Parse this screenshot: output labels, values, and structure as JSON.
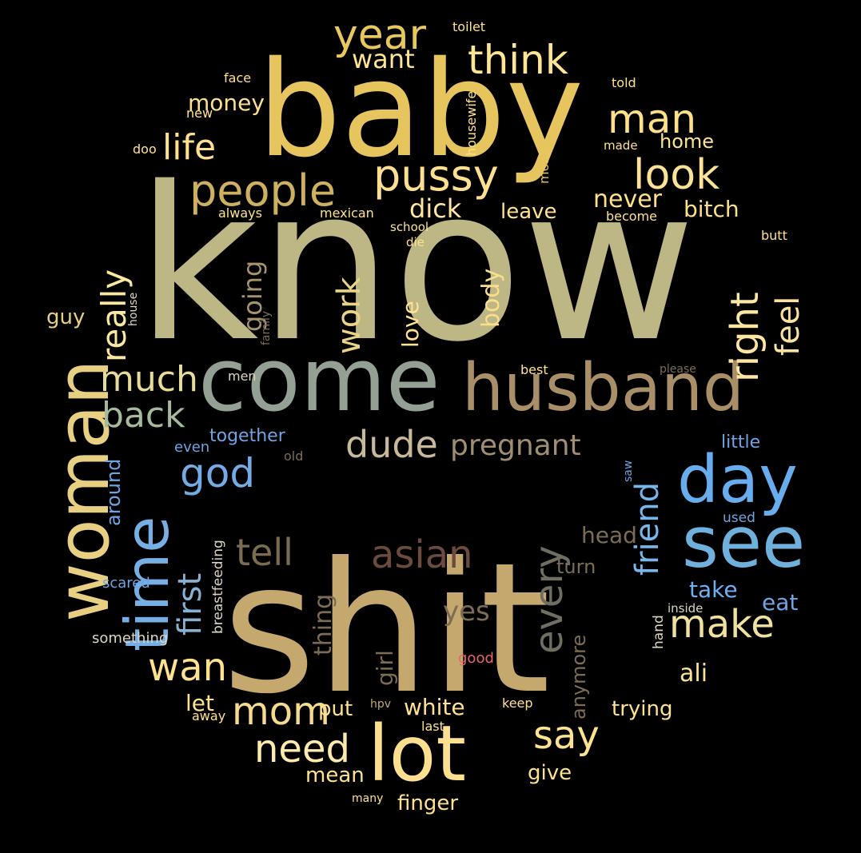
{
  "background": "#000000",
  "words": [
    {
      "text": "know",
      "color": "#BDB685"
    },
    {
      "text": "shit",
      "color": "#C5A86E"
    },
    {
      "text": "baby",
      "color": "#E7C55E"
    },
    {
      "text": "come",
      "color": "#93A093"
    },
    {
      "text": "husband",
      "color": "#A98F67"
    },
    {
      "text": "woman",
      "color": "#E8D083"
    },
    {
      "text": "see",
      "color": "#6FB0DC"
    },
    {
      "text": "day",
      "color": "#68ADEE"
    },
    {
      "text": "lot",
      "color": "#FDE08F"
    },
    {
      "text": "time",
      "color": "#75AFE4"
    },
    {
      "text": "people",
      "color": "#CDB15F"
    },
    {
      "text": "pussy",
      "color": "#FCE090"
    },
    {
      "text": "year",
      "color": "#E8C85C"
    },
    {
      "text": "think",
      "color": "#FDE594"
    },
    {
      "text": "look",
      "color": "#FBE296"
    },
    {
      "text": "man",
      "color": "#FEE08A"
    },
    {
      "text": "right",
      "color": "#FCE6A2"
    },
    {
      "text": "feel",
      "color": "#F8E29E"
    },
    {
      "text": "much",
      "color": "#E7DB99"
    },
    {
      "text": "back",
      "color": "#A5BA9D"
    },
    {
      "text": "life",
      "color": "#FFE08D"
    },
    {
      "text": "dude",
      "color": "#C8B99D"
    },
    {
      "text": "pregnant",
      "color": "#A08E74"
    },
    {
      "text": "god",
      "color": "#73ABE5"
    },
    {
      "text": "tell",
      "color": "#7B6B50"
    },
    {
      "text": "asian",
      "color": "#6C4B3F"
    },
    {
      "text": "every",
      "color": "#706E60"
    },
    {
      "text": "first",
      "color": "#86B1D2"
    },
    {
      "text": "friend",
      "color": "#77B6EA"
    },
    {
      "text": "make",
      "color": "#F0E19D"
    },
    {
      "text": "wan",
      "color": "#FEE28E"
    },
    {
      "text": "say",
      "color": "#FDE38F"
    },
    {
      "text": "need",
      "color": "#FEEAAC"
    },
    {
      "text": "mom",
      "color": "#F5DC8C"
    },
    {
      "text": "really",
      "color": "#FBE79D"
    },
    {
      "text": "work",
      "color": "#E8D387"
    },
    {
      "text": "want",
      "color": "#FEE591"
    },
    {
      "text": "money",
      "color": "#FCE08E"
    },
    {
      "text": "dick",
      "color": "#FFE6A5"
    },
    {
      "text": "never",
      "color": "#FEE088"
    },
    {
      "text": "bitch",
      "color": "#FEE088"
    },
    {
      "text": "leave",
      "color": "#FFE390"
    },
    {
      "text": "home",
      "color": "#FFE390"
    },
    {
      "text": "love",
      "color": "#FFE390"
    },
    {
      "text": "body",
      "color": "#FCDD8C"
    },
    {
      "text": "going",
      "color": "#A6946D"
    },
    {
      "text": "together",
      "color": "#6FA4E4"
    },
    {
      "text": "little",
      "color": "#6FA4E4"
    },
    {
      "text": "take",
      "color": "#6DB1F2"
    },
    {
      "text": "eat",
      "color": "#6FA4E4"
    },
    {
      "text": "ali",
      "color": "#F9E395"
    },
    {
      "text": "white",
      "color": "#FEE28E"
    },
    {
      "text": "trying",
      "color": "#FEE28E"
    },
    {
      "text": "mean",
      "color": "#FEE28E"
    },
    {
      "text": "give",
      "color": "#FEE28E"
    },
    {
      "text": "finger",
      "color": "#FEE28E"
    },
    {
      "text": "put",
      "color": "#FEE28E"
    },
    {
      "text": "let",
      "color": "#FEE28E"
    },
    {
      "text": "yes",
      "color": "#7C6C56"
    },
    {
      "text": "head",
      "color": "#7C6C56"
    },
    {
      "text": "turn",
      "color": "#7C6C56"
    },
    {
      "text": "thing",
      "color": "#7C6C56"
    },
    {
      "text": "girl",
      "color": "#7C6C56"
    },
    {
      "text": "anymore",
      "color": "#7C6C56"
    },
    {
      "text": "around",
      "color": "#6FA4E4"
    },
    {
      "text": "scared",
      "color": "#6FA4E4"
    },
    {
      "text": "breastfeeding",
      "color": "#DDD6C0"
    },
    {
      "text": "something",
      "color": "#DDD6C0"
    },
    {
      "text": "good",
      "color": "#E8646B"
    },
    {
      "text": "guy",
      "color": "#E8D083"
    },
    {
      "text": "house",
      "color": "#DDD6C0"
    },
    {
      "text": "family",
      "color": "#7C6C56"
    },
    {
      "text": "men",
      "color": "#DDD6C0"
    },
    {
      "text": "even",
      "color": "#6FA4E4"
    },
    {
      "text": "old",
      "color": "#7C6C56"
    },
    {
      "text": "best",
      "color": "#FEE28E"
    },
    {
      "text": "please",
      "color": "#7C6C56"
    },
    {
      "text": "used",
      "color": "#6FA4E4"
    },
    {
      "text": "saw",
      "color": "#6FA4E4"
    },
    {
      "text": "inside",
      "color": "#DDD6C0"
    },
    {
      "text": "hand",
      "color": "#DDD6C0"
    },
    {
      "text": "hpv",
      "color": "#C5A86E"
    },
    {
      "text": "keep",
      "color": "#FEE28E"
    },
    {
      "text": "last",
      "color": "#FEE28E"
    },
    {
      "text": "away",
      "color": "#FEE28E"
    },
    {
      "text": "many",
      "color": "#FEE28E"
    },
    {
      "text": "always",
      "color": "#FEE28E"
    },
    {
      "text": "mexican",
      "color": "#FEE28E"
    },
    {
      "text": "school",
      "color": "#FEE28E"
    },
    {
      "text": "die",
      "color": "#FEE28E"
    },
    {
      "text": "become",
      "color": "#FEE28E"
    },
    {
      "text": "butt",
      "color": "#FEE28E"
    },
    {
      "text": "doo",
      "color": "#FEE28E"
    },
    {
      "text": "new",
      "color": "#FEE28E"
    },
    {
      "text": "face",
      "color": "#FEE28E"
    },
    {
      "text": "toilet",
      "color": "#FEE28E"
    },
    {
      "text": "told",
      "color": "#FEE28E"
    },
    {
      "text": "made",
      "color": "#FEE28E"
    },
    {
      "text": "housewife",
      "color": "#FEE28E"
    },
    {
      "text": "month",
      "color": "#E8C85C"
    }
  ]
}
